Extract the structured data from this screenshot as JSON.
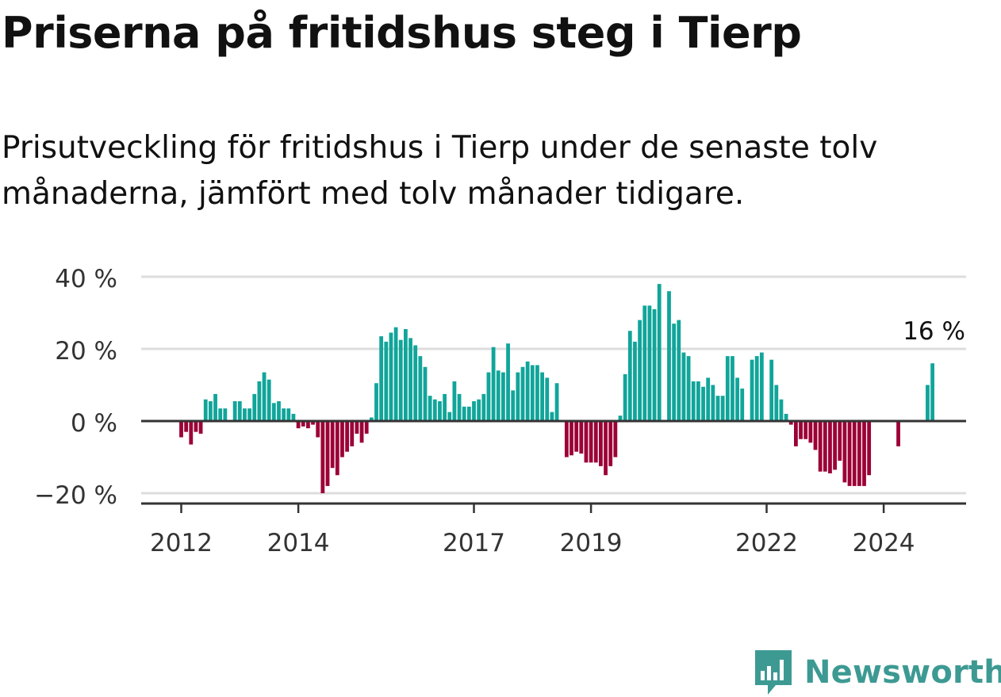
{
  "title": "Priserna på fritidshus steg i Tierp",
  "subtitle": "Prisutveckling för fritidshus i Tierp under de senaste tolv månaderna, jämfört med tolv månader tidigare.",
  "brand": {
    "name": "Newsworthy",
    "color": "#3d9a93",
    "icon": "newsworthy-logo-icon"
  },
  "colors": {
    "positive": "#11a59a",
    "negative": "#9c0037",
    "grid": "#dddddd",
    "axis": "#333333"
  },
  "chart_data": {
    "type": "bar",
    "title": "Priserna på fritidshus steg i Tierp",
    "ylabel": "",
    "xlabel": "",
    "ylim": [
      -22,
      40
    ],
    "yticks": [
      {
        "value": 40,
        "label": "40 %"
      },
      {
        "value": 20,
        "label": "20 %"
      },
      {
        "value": 0,
        "label": "0 %"
      },
      {
        "value": -20,
        "label": "−20 %"
      }
    ],
    "xticks": [
      {
        "index": 0,
        "label": "2012"
      },
      {
        "index": 24,
        "label": "2014"
      },
      {
        "index": 60,
        "label": "2017"
      },
      {
        "index": 84,
        "label": "2019"
      },
      {
        "index": 120,
        "label": "2022"
      },
      {
        "index": 144,
        "label": "2024"
      }
    ],
    "annotation": {
      "label": "16 %",
      "index": 154,
      "value": 16
    },
    "start": "2012-01",
    "values": [
      -4.5,
      -3,
      -6.5,
      -3,
      -3.5,
      6,
      5.5,
      7.5,
      3.5,
      3.5,
      null,
      5.5,
      5.5,
      3.5,
      3.5,
      7.5,
      11,
      13.5,
      11.5,
      5,
      5.5,
      3.5,
      3.5,
      2,
      -2,
      -1.5,
      -2,
      -1,
      -4.5,
      -20,
      -18,
      -13,
      -15,
      -10,
      -8.5,
      -7,
      -3.5,
      -6,
      -3.5,
      1,
      10.5,
      23.5,
      22,
      24.5,
      26,
      22.5,
      25.5,
      23,
      21,
      18,
      15,
      7,
      6,
      5.5,
      7.5,
      2.5,
      11,
      7.5,
      4,
      4,
      5.5,
      6,
      7.5,
      13.5,
      20.5,
      14,
      13.5,
      21.5,
      8.5,
      13.5,
      15,
      16.5,
      15.5,
      15.5,
      13.5,
      12,
      2.5,
      10.5,
      null,
      -10,
      -9.5,
      -8.5,
      -9,
      -11.5,
      -11.5,
      -11.5,
      -12.5,
      -15,
      -12.5,
      -10,
      1.5,
      13,
      25,
      22,
      28,
      32,
      32,
      31,
      38,
      null,
      36,
      27,
      28,
      19,
      18,
      11,
      11,
      9.5,
      12,
      10,
      7,
      7,
      18,
      18,
      12,
      9,
      null,
      17,
      18,
      19,
      null,
      17,
      10,
      6,
      2,
      -1,
      -7,
      -5,
      -5,
      -6,
      -8,
      -14,
      -14,
      -14.5,
      -13.5,
      -11,
      -17,
      -18,
      -18,
      -18,
      -18,
      -15,
      null,
      null,
      null,
      null,
      null,
      -7,
      null,
      null,
      null,
      null,
      null,
      10,
      16
    ]
  }
}
